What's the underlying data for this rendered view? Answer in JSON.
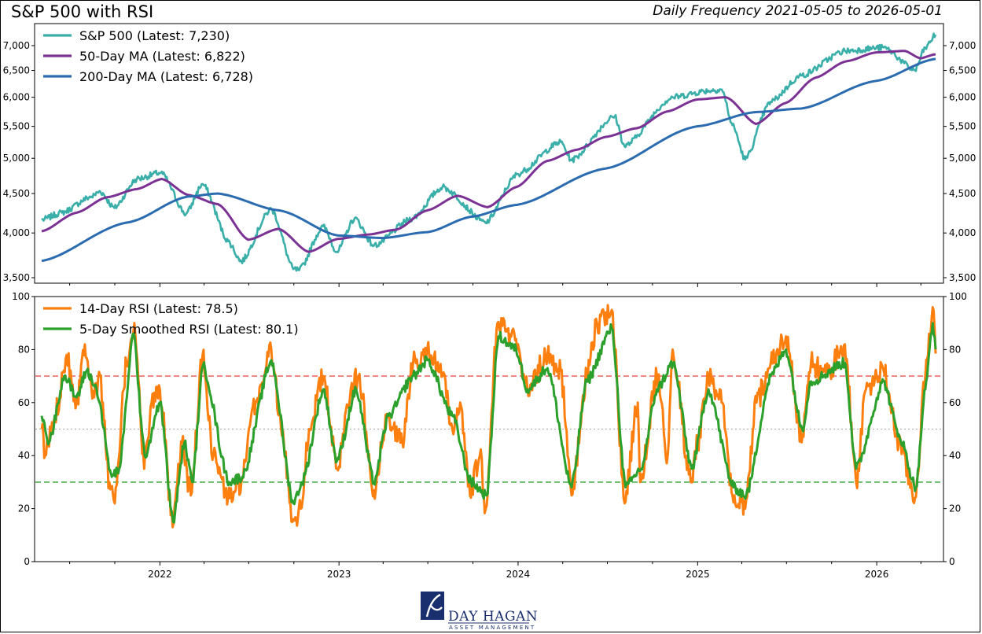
{
  "header": {
    "title": "S&P 500 with RSI",
    "subtitle": "Daily Frequency 2021-05-05 to 2026-05-01"
  },
  "logo": {
    "name": "DAY HAGAN",
    "tagline": "ASSET MANAGEMENT",
    "color": "#1a2f6e"
  },
  "chart_data": [
    {
      "type": "line",
      "panel": "price",
      "x_type": "date",
      "x_range": [
        "2021-05-05",
        "2026-05-01"
      ],
      "y_scale": "log",
      "ylim": [
        3400,
        7700
      ],
      "yticks": [
        3500,
        4000,
        4500,
        5000,
        5500,
        6000,
        6500,
        7000
      ],
      "ytick_labels": [
        "3,500",
        "4,000",
        "4,500",
        "5,000",
        "5,500",
        "6,000",
        "6,500",
        "7,000"
      ],
      "legend_position": "top-left",
      "grid": false,
      "series": [
        {
          "name": "S&P 500 (Latest: 7,230)",
          "color": "#3aafa9",
          "anchors": [
            [
              "2021-05-05",
              4160
            ],
            [
              "2021-06-15",
              4250
            ],
            [
              "2021-08-15",
              4460
            ],
            [
              "2021-09-01",
              4530
            ],
            [
              "2021-09-30",
              4310
            ],
            [
              "2021-11-15",
              4700
            ],
            [
              "2022-01-03",
              4790
            ],
            [
              "2022-02-23",
              4230
            ],
            [
              "2022-03-29",
              4630
            ],
            [
              "2022-05-20",
              3900
            ],
            [
              "2022-06-16",
              3670
            ],
            [
              "2022-08-16",
              4300
            ],
            [
              "2022-09-30",
              3590
            ],
            [
              "2022-10-12",
              3580
            ],
            [
              "2022-11-30",
              4080
            ],
            [
              "2022-12-28",
              3780
            ],
            [
              "2023-02-02",
              4180
            ],
            [
              "2023-03-13",
              3850
            ],
            [
              "2023-05-31",
              4180
            ],
            [
              "2023-07-31",
              4590
            ],
            [
              "2023-10-27",
              4120
            ],
            [
              "2023-12-31",
              4770
            ],
            [
              "2024-03-28",
              5250
            ],
            [
              "2024-04-19",
              4970
            ],
            [
              "2024-07-16",
              5670
            ],
            [
              "2024-08-05",
              5180
            ],
            [
              "2024-11-11",
              6000
            ],
            [
              "2025-01-23",
              6120
            ],
            [
              "2025-02-19",
              6140
            ],
            [
              "2025-03-13",
              5520
            ],
            [
              "2025-04-08",
              4980
            ],
            [
              "2025-05-30",
              5920
            ],
            [
              "2025-07-31",
              6400
            ],
            [
              "2025-10-28",
              6890
            ],
            [
              "2026-01-15",
              6960
            ],
            [
              "2026-03-20",
              6500
            ],
            [
              "2026-04-10",
              6950
            ],
            [
              "2026-05-01",
              7230
            ]
          ]
        },
        {
          "name": "50-Day MA (Latest: 6,822)",
          "color": "#7b3294",
          "anchors": [
            [
              "2021-05-05",
              4020
            ],
            [
              "2021-07-15",
              4250
            ],
            [
              "2021-09-15",
              4450
            ],
            [
              "2021-11-15",
              4560
            ],
            [
              "2022-01-05",
              4700
            ],
            [
              "2022-02-28",
              4480
            ],
            [
              "2022-04-29",
              4360
            ],
            [
              "2022-06-30",
              3920
            ],
            [
              "2022-08-31",
              4050
            ],
            [
              "2022-10-31",
              3780
            ],
            [
              "2022-12-30",
              3930
            ],
            [
              "2023-02-28",
              3980
            ],
            [
              "2023-04-28",
              4040
            ],
            [
              "2023-06-30",
              4280
            ],
            [
              "2023-08-31",
              4470
            ],
            [
              "2023-10-31",
              4320
            ],
            [
              "2023-12-29",
              4590
            ],
            [
              "2024-02-29",
              4960
            ],
            [
              "2024-04-30",
              5130
            ],
            [
              "2024-06-28",
              5330
            ],
            [
              "2024-08-30",
              5470
            ],
            [
              "2024-10-31",
              5750
            ],
            [
              "2024-12-31",
              5960
            ],
            [
              "2025-02-28",
              6000
            ],
            [
              "2025-04-30",
              5540
            ],
            [
              "2025-06-30",
              5900
            ],
            [
              "2025-08-29",
              6360
            ],
            [
              "2025-10-31",
              6680
            ],
            [
              "2025-12-31",
              6860
            ],
            [
              "2026-02-27",
              6890
            ],
            [
              "2026-03-31",
              6740
            ],
            [
              "2026-05-01",
              6822
            ]
          ]
        },
        {
          "name": "200-Day MA (Latest: 6,728)",
          "color": "#2b6cb0",
          "anchors": [
            [
              "2021-05-05",
              3680
            ],
            [
              "2021-10-29",
              4130
            ],
            [
              "2022-02-28",
              4460
            ],
            [
              "2022-04-29",
              4500
            ],
            [
              "2022-08-31",
              4280
            ],
            [
              "2022-12-30",
              3970
            ],
            [
              "2023-03-31",
              3940
            ],
            [
              "2023-06-30",
              4010
            ],
            [
              "2023-09-29",
              4200
            ],
            [
              "2023-12-29",
              4350
            ],
            [
              "2024-06-28",
              4850
            ],
            [
              "2024-12-31",
              5500
            ],
            [
              "2025-04-30",
              5740
            ],
            [
              "2025-07-31",
              5800
            ],
            [
              "2025-12-31",
              6300
            ],
            [
              "2026-05-01",
              6728
            ]
          ]
        }
      ]
    },
    {
      "type": "line",
      "panel": "rsi",
      "x_type": "date",
      "x_range": [
        "2021-05-05",
        "2026-05-01"
      ],
      "ylim": [
        0,
        100
      ],
      "yticks": [
        0,
        20,
        40,
        60,
        80,
        100
      ],
      "xticks": [
        "2022",
        "2023",
        "2024",
        "2025",
        "2026"
      ],
      "legend_position": "top-left",
      "grid": false,
      "reference_lines": [
        {
          "value": 70,
          "color": "#e8514a",
          "style": "dashed"
        },
        {
          "value": 50,
          "color": "#b0b0b0",
          "style": "dotted"
        },
        {
          "value": 30,
          "color": "#2ca02c",
          "style": "dashed"
        }
      ],
      "series": [
        {
          "name": "14-Day RSI (Latest: 78.5)",
          "color": "#ff7f0e",
          "anchors": [
            [
              "2021-05-05",
              50
            ],
            [
              "2021-05-12",
              40
            ],
            [
              "2021-06-01",
              55
            ],
            [
              "2021-06-25",
              78
            ],
            [
              "2021-07-15",
              60
            ],
            [
              "2021-08-01",
              82
            ],
            [
              "2021-08-20",
              62
            ],
            [
              "2021-09-01",
              70
            ],
            [
              "2021-09-20",
              30
            ],
            [
              "2021-10-01",
              22
            ],
            [
              "2021-10-25",
              75
            ],
            [
              "2021-11-10",
              90
            ],
            [
              "2021-11-30",
              35
            ],
            [
              "2021-12-15",
              60
            ],
            [
              "2022-01-01",
              65
            ],
            [
              "2022-01-27",
              13
            ],
            [
              "2022-02-15",
              45
            ],
            [
              "2022-03-05",
              25
            ],
            [
              "2022-03-29",
              78
            ],
            [
              "2022-04-20",
              40
            ],
            [
              "2022-05-20",
              24
            ],
            [
              "2022-06-16",
              30
            ],
            [
              "2022-07-15",
              60
            ],
            [
              "2022-08-16",
              80
            ],
            [
              "2022-09-05",
              50
            ],
            [
              "2022-09-30",
              16
            ],
            [
              "2022-10-15",
              20
            ],
            [
              "2022-11-01",
              50
            ],
            [
              "2022-11-30",
              70
            ],
            [
              "2022-12-28",
              35
            ],
            [
              "2023-01-25",
              65
            ],
            [
              "2023-02-10",
              70
            ],
            [
              "2023-03-13",
              27
            ],
            [
              "2023-04-10",
              55
            ],
            [
              "2023-05-10",
              45
            ],
            [
              "2023-06-01",
              75
            ],
            [
              "2023-06-30",
              80
            ],
            [
              "2023-07-31",
              70
            ],
            [
              "2023-08-20",
              50
            ],
            [
              "2023-09-05",
              60
            ],
            [
              "2023-09-25",
              25
            ],
            [
              "2023-10-15",
              40
            ],
            [
              "2023-10-27",
              20
            ],
            [
              "2023-11-20",
              90
            ],
            [
              "2023-12-28",
              84
            ],
            [
              "2024-01-20",
              65
            ],
            [
              "2024-03-01",
              78
            ],
            [
              "2024-03-28",
              72
            ],
            [
              "2024-04-19",
              25
            ],
            [
              "2024-05-20",
              70
            ],
            [
              "2024-06-10",
              90
            ],
            [
              "2024-07-10",
              95
            ],
            [
              "2024-08-05",
              22
            ],
            [
              "2024-09-01",
              60
            ],
            [
              "2024-09-06",
              30
            ],
            [
              "2024-10-10",
              70
            ],
            [
              "2024-11-01",
              40
            ],
            [
              "2024-11-11",
              80
            ],
            [
              "2024-12-18",
              30
            ],
            [
              "2025-01-01",
              45
            ],
            [
              "2025-01-23",
              70
            ],
            [
              "2025-02-19",
              60
            ],
            [
              "2025-03-13",
              25
            ],
            [
              "2025-04-08",
              20
            ],
            [
              "2025-05-01",
              60
            ],
            [
              "2025-05-30",
              75
            ],
            [
              "2025-06-30",
              85
            ],
            [
              "2025-08-01",
              45
            ],
            [
              "2025-08-20",
              75
            ],
            [
              "2025-09-20",
              70
            ],
            [
              "2025-10-28",
              82
            ],
            [
              "2025-11-20",
              30
            ],
            [
              "2025-12-10",
              65
            ],
            [
              "2026-01-15",
              72
            ],
            [
              "2026-02-15",
              45
            ],
            [
              "2026-03-20",
              24
            ],
            [
              "2026-04-10",
              70
            ],
            [
              "2026-04-25",
              96
            ],
            [
              "2026-05-01",
              78.5
            ]
          ]
        },
        {
          "name": "5-Day Smoothed RSI (Latest: 80.1)",
          "color": "#2ca02c",
          "anchors": [
            [
              "2021-05-05",
              55
            ],
            [
              "2021-05-20",
              45
            ],
            [
              "2021-06-20",
              70
            ],
            [
              "2021-07-15",
              62
            ],
            [
              "2021-08-05",
              72
            ],
            [
              "2021-08-25",
              65
            ],
            [
              "2021-09-25",
              32
            ],
            [
              "2021-10-10",
              35
            ],
            [
              "2021-11-08",
              86
            ],
            [
              "2021-12-01",
              40
            ],
            [
              "2022-01-01",
              60
            ],
            [
              "2022-01-28",
              15
            ],
            [
              "2022-02-20",
              45
            ],
            [
              "2022-03-08",
              30
            ],
            [
              "2022-03-30",
              74
            ],
            [
              "2022-05-22",
              30
            ],
            [
              "2022-06-18",
              32
            ],
            [
              "2022-08-16",
              76
            ],
            [
              "2022-09-30",
              22
            ],
            [
              "2022-10-18",
              30
            ],
            [
              "2022-11-30",
              65
            ],
            [
              "2022-12-28",
              38
            ],
            [
              "2023-02-05",
              65
            ],
            [
              "2023-03-13",
              30
            ],
            [
              "2023-04-12",
              55
            ],
            [
              "2023-06-01",
              70
            ],
            [
              "2023-06-30",
              76
            ],
            [
              "2023-08-20",
              55
            ],
            [
              "2023-09-27",
              30
            ],
            [
              "2023-10-29",
              25
            ],
            [
              "2023-11-22",
              85
            ],
            [
              "2023-12-28",
              80
            ],
            [
              "2024-01-20",
              65
            ],
            [
              "2024-03-01",
              73
            ],
            [
              "2024-04-19",
              28
            ],
            [
              "2024-05-20",
              68
            ],
            [
              "2024-07-10",
              88
            ],
            [
              "2024-08-07",
              28
            ],
            [
              "2024-09-08",
              35
            ],
            [
              "2024-10-10",
              65
            ],
            [
              "2024-11-12",
              75
            ],
            [
              "2024-12-20",
              35
            ],
            [
              "2025-01-23",
              65
            ],
            [
              "2025-03-15",
              28
            ],
            [
              "2025-04-10",
              25
            ],
            [
              "2025-05-30",
              70
            ],
            [
              "2025-06-30",
              80
            ],
            [
              "2025-08-02",
              50
            ],
            [
              "2025-08-20",
              68
            ],
            [
              "2025-10-28",
              75
            ],
            [
              "2025-11-20",
              35
            ],
            [
              "2026-01-15",
              68
            ],
            [
              "2026-02-15",
              48
            ],
            [
              "2026-03-22",
              28
            ],
            [
              "2026-04-10",
              65
            ],
            [
              "2026-04-25",
              90
            ],
            [
              "2026-05-01",
              80.1
            ]
          ]
        }
      ]
    }
  ]
}
